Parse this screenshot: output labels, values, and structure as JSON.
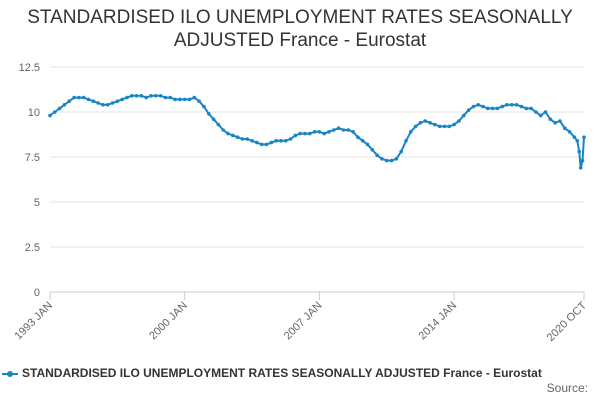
{
  "chart_data": {
    "type": "line",
    "title_lines": [
      "STANDARDISED ILO UNEMPLOYMENT RATES SEASONALLY",
      "ADJUSTED France - Eurostat"
    ],
    "xlabel": "",
    "ylabel": "",
    "ylim": [
      0,
      12.5
    ],
    "yticks": [
      "0",
      "2.5",
      "5",
      "7.5",
      "10",
      "12.5"
    ],
    "xlim": [
      1993.0,
      2020.75
    ],
    "xticks": [
      {
        "label": "1993 JAN",
        "x": 1993.0
      },
      {
        "label": "2000 JAN",
        "x": 2000.0
      },
      {
        "label": "2007 JAN",
        "x": 2007.0
      },
      {
        "label": "2014 JAN",
        "x": 2014.0
      },
      {
        "label": "2020 OCT",
        "x": 2020.75
      }
    ],
    "grid": true,
    "series": [
      {
        "name": "STANDARDISED ILO UNEMPLOYMENT RATES SEASONALLY ADJUSTED France - Eurostat",
        "color": "#1a85c4",
        "points": [
          [
            1993.0,
            9.8
          ],
          [
            1993.25,
            10.0
          ],
          [
            1993.5,
            10.2
          ],
          [
            1993.75,
            10.4
          ],
          [
            1994.0,
            10.6
          ],
          [
            1994.25,
            10.8
          ],
          [
            1994.5,
            10.8
          ],
          [
            1994.75,
            10.8
          ],
          [
            1995.0,
            10.7
          ],
          [
            1995.25,
            10.6
          ],
          [
            1995.5,
            10.5
          ],
          [
            1995.75,
            10.4
          ],
          [
            1996.0,
            10.4
          ],
          [
            1996.25,
            10.5
          ],
          [
            1996.5,
            10.6
          ],
          [
            1996.75,
            10.7
          ],
          [
            1997.0,
            10.8
          ],
          [
            1997.25,
            10.9
          ],
          [
            1997.5,
            10.9
          ],
          [
            1997.75,
            10.9
          ],
          [
            1998.0,
            10.8
          ],
          [
            1998.25,
            10.9
          ],
          [
            1998.5,
            10.9
          ],
          [
            1998.75,
            10.9
          ],
          [
            1999.0,
            10.8
          ],
          [
            1999.25,
            10.8
          ],
          [
            1999.5,
            10.7
          ],
          [
            1999.75,
            10.7
          ],
          [
            2000.0,
            10.7
          ],
          [
            2000.25,
            10.7
          ],
          [
            2000.5,
            10.8
          ],
          [
            2000.75,
            10.6
          ],
          [
            2001.0,
            10.3
          ],
          [
            2001.25,
            9.9
          ],
          [
            2001.5,
            9.6
          ],
          [
            2001.75,
            9.3
          ],
          [
            2002.0,
            9.0
          ],
          [
            2002.25,
            8.8
          ],
          [
            2002.5,
            8.7
          ],
          [
            2002.75,
            8.6
          ],
          [
            2003.0,
            8.5
          ],
          [
            2003.25,
            8.5
          ],
          [
            2003.5,
            8.4
          ],
          [
            2003.75,
            8.3
          ],
          [
            2004.0,
            8.2
          ],
          [
            2004.25,
            8.2
          ],
          [
            2004.5,
            8.3
          ],
          [
            2004.75,
            8.4
          ],
          [
            2005.0,
            8.4
          ],
          [
            2005.25,
            8.4
          ],
          [
            2005.5,
            8.5
          ],
          [
            2005.75,
            8.7
          ],
          [
            2006.0,
            8.8
          ],
          [
            2006.25,
            8.8
          ],
          [
            2006.5,
            8.8
          ],
          [
            2006.75,
            8.9
          ],
          [
            2007.0,
            8.9
          ],
          [
            2007.25,
            8.8
          ],
          [
            2007.5,
            8.9
          ],
          [
            2007.75,
            9.0
          ],
          [
            2008.0,
            9.1
          ],
          [
            2008.25,
            9.0
          ],
          [
            2008.5,
            9.0
          ],
          [
            2008.75,
            8.9
          ],
          [
            2009.0,
            8.6
          ],
          [
            2009.25,
            8.4
          ],
          [
            2009.5,
            8.2
          ],
          [
            2009.75,
            7.9
          ],
          [
            2010.0,
            7.6
          ],
          [
            2010.25,
            7.4
          ],
          [
            2010.5,
            7.3
          ],
          [
            2010.75,
            7.3
          ],
          [
            2011.0,
            7.4
          ],
          [
            2011.25,
            7.8
          ],
          [
            2011.5,
            8.4
          ],
          [
            2011.75,
            8.9
          ],
          [
            2012.0,
            9.2
          ],
          [
            2012.25,
            9.4
          ],
          [
            2012.5,
            9.5
          ],
          [
            2012.75,
            9.4
          ],
          [
            2013.0,
            9.3
          ],
          [
            2013.25,
            9.2
          ],
          [
            2013.5,
            9.2
          ],
          [
            2013.75,
            9.2
          ],
          [
            2014.0,
            9.3
          ],
          [
            2014.25,
            9.5
          ],
          [
            2014.5,
            9.8
          ],
          [
            2014.75,
            10.1
          ],
          [
            2015.0,
            10.3
          ],
          [
            2015.25,
            10.4
          ],
          [
            2015.5,
            10.3
          ],
          [
            2015.75,
            10.2
          ],
          [
            2016.0,
            10.2
          ],
          [
            2016.25,
            10.2
          ],
          [
            2016.5,
            10.3
          ],
          [
            2016.75,
            10.4
          ],
          [
            2017.0,
            10.4
          ],
          [
            2017.25,
            10.4
          ],
          [
            2017.5,
            10.3
          ],
          [
            2017.75,
            10.2
          ],
          [
            2018.0,
            10.2
          ],
          [
            2018.25,
            10.0
          ],
          [
            2018.5,
            9.8
          ],
          [
            2018.75,
            10.0
          ],
          [
            2019.0,
            9.6
          ],
          [
            2019.25,
            9.4
          ],
          [
            2019.5,
            9.5
          ],
          [
            2019.75,
            9.1
          ],
          [
            2020.0,
            8.9
          ],
          [
            2020.25,
            8.6
          ],
          [
            2020.4,
            8.4
          ],
          [
            2020.5,
            7.8
          ],
          [
            2020.58,
            6.9
          ],
          [
            2020.67,
            7.3
          ],
          [
            2020.75,
            8.6
          ]
        ]
      }
    ]
  },
  "legend_label": "STANDARDISED ILO UNEMPLOYMENT RATES SEASONALLY ADJUSTED France - Eurostat",
  "source_label": "Source:"
}
